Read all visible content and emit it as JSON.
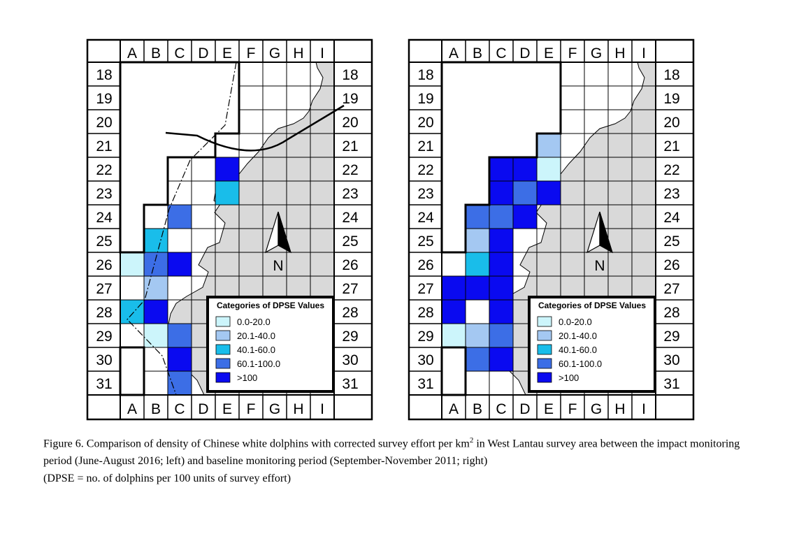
{
  "columns": [
    "A",
    "B",
    "C",
    "D",
    "E",
    "F",
    "G",
    "H",
    "I"
  ],
  "rows": [
    "18",
    "19",
    "20",
    "21",
    "22",
    "23",
    "24",
    "25",
    "26",
    "27",
    "28",
    "29",
    "30",
    "31"
  ],
  "north_label": "N",
  "legend": {
    "title": "Categories of DPSE Values",
    "items": [
      {
        "label": "0.0-20.0",
        "color": "#ccf5fb"
      },
      {
        "label": "20.1-40.0",
        "color": "#a4c8f2"
      },
      {
        "label": "40.1-60.0",
        "color": "#19bdea"
      },
      {
        "label": "60.1-100.0",
        "color": "#3c6ee6"
      },
      {
        "label": ">100",
        "color": "#0a0af0"
      }
    ]
  },
  "colors": {
    "land": "#d9d9d9",
    "border": "#000000"
  },
  "maps": [
    {
      "name": "impact",
      "cells": [
        {
          "col": "E",
          "row": "22",
          "cat": 4
        },
        {
          "col": "E",
          "row": "23",
          "cat": 2
        },
        {
          "col": "C",
          "row": "24",
          "cat": 3
        },
        {
          "col": "B",
          "row": "25",
          "cat": 2
        },
        {
          "col": "A",
          "row": "26",
          "cat": 0
        },
        {
          "col": "B",
          "row": "26",
          "cat": 3
        },
        {
          "col": "C",
          "row": "26",
          "cat": 4
        },
        {
          "col": "B",
          "row": "27",
          "cat": 1
        },
        {
          "col": "A",
          "row": "28",
          "cat": 2
        },
        {
          "col": "B",
          "row": "28",
          "cat": 4
        },
        {
          "col": "B",
          "row": "29",
          "cat": 0
        },
        {
          "col": "C",
          "row": "29",
          "cat": 3
        },
        {
          "col": "C",
          "row": "30",
          "cat": 4
        },
        {
          "col": "C",
          "row": "31",
          "cat": 3
        }
      ]
    },
    {
      "name": "baseline",
      "cells": [
        {
          "col": "E",
          "row": "21",
          "cat": 1
        },
        {
          "col": "C",
          "row": "22",
          "cat": 4
        },
        {
          "col": "D",
          "row": "22",
          "cat": 4
        },
        {
          "col": "E",
          "row": "22",
          "cat": 0
        },
        {
          "col": "C",
          "row": "23",
          "cat": 4
        },
        {
          "col": "D",
          "row": "23",
          "cat": 3
        },
        {
          "col": "E",
          "row": "23",
          "cat": 4
        },
        {
          "col": "B",
          "row": "24",
          "cat": 3
        },
        {
          "col": "C",
          "row": "24",
          "cat": 3
        },
        {
          "col": "D",
          "row": "24",
          "cat": 4
        },
        {
          "col": "B",
          "row": "25",
          "cat": 1
        },
        {
          "col": "C",
          "row": "25",
          "cat": 4
        },
        {
          "col": "B",
          "row": "26",
          "cat": 2
        },
        {
          "col": "C",
          "row": "26",
          "cat": 4
        },
        {
          "col": "A",
          "row": "27",
          "cat": 4
        },
        {
          "col": "B",
          "row": "27",
          "cat": 4
        },
        {
          "col": "C",
          "row": "27",
          "cat": 4
        },
        {
          "col": "A",
          "row": "28",
          "cat": 4
        },
        {
          "col": "C",
          "row": "28",
          "cat": 4
        },
        {
          "col": "A",
          "row": "29",
          "cat": 0
        },
        {
          "col": "B",
          "row": "29",
          "cat": 1
        },
        {
          "col": "C",
          "row": "29",
          "cat": 3
        },
        {
          "col": "B",
          "row": "30",
          "cat": 3
        },
        {
          "col": "C",
          "row": "30",
          "cat": 4
        }
      ]
    }
  ],
  "caption": {
    "line1_pre": "Figure 6.  Comparison of density of Chinese white dolphins with corrected survey effort per km",
    "line1_sup": "2",
    "line1_post": " in West Lantau survey area between the impact monitoring period (June-August 2016; left) and baseline monitoring period (September-November 2011; right)",
    "line2": "(DPSE = no. of dolphins per 100 units of survey effort)"
  }
}
